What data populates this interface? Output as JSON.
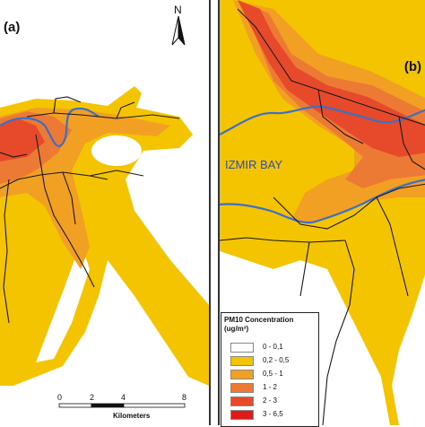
{
  "panels": {
    "a": {
      "label": "(a)"
    },
    "b": {
      "label": "(b)"
    }
  },
  "north_arrow": {
    "letter": "N"
  },
  "scale_bar": {
    "ticks": [
      "0",
      "2",
      "4",
      "8"
    ],
    "unit": "Kilometers"
  },
  "place_label": "IZMIR BAY",
  "legend": {
    "title_line1": "PM10 Concentration",
    "title_line2": "(ug/m³)",
    "items": [
      {
        "label": "0 - 0,1",
        "color": "#ffffff"
      },
      {
        "label": "0,2 - 0,5",
        "color": "#f5c400"
      },
      {
        "label": "0,5 - 1",
        "color": "#f2a024"
      },
      {
        "label": "1 - 2",
        "color": "#ec7a34"
      },
      {
        "label": "2 - 3",
        "color": "#e64a2a"
      },
      {
        "label": "3 - 6,5",
        "color": "#e01a1a"
      }
    ]
  },
  "colors": {
    "road": "#1a1a1a",
    "coast": "#3d6fc4"
  }
}
